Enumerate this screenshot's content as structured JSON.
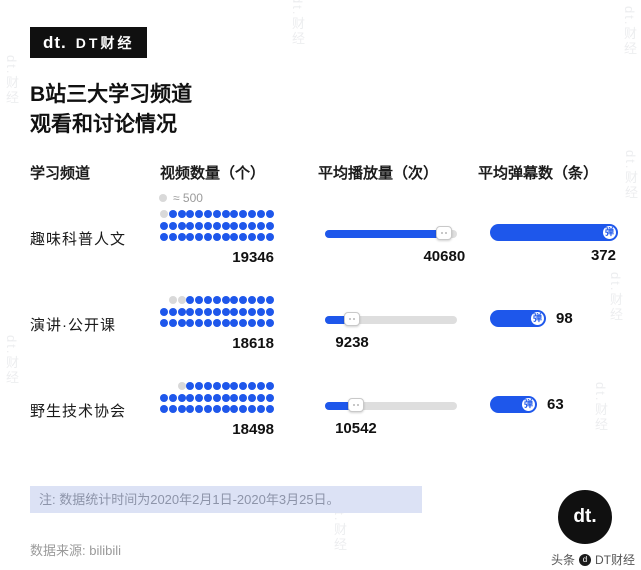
{
  "colors": {
    "accent": "#1E57EB",
    "gray_dot": "#D9D9D9",
    "track": "#DEDEDE",
    "note_bg": "#DCE2F5"
  },
  "brand": {
    "logo_text": "dt.",
    "logo_title": "DT财经"
  },
  "title": {
    "line1": "B站三大学习频道",
    "line2": "观看和讨论情况"
  },
  "table_headers": {
    "channel": "学习频道",
    "videos": "视频数量（个）",
    "plays": "平均播放量（次）",
    "danmaku": "平均弹幕数（条）"
  },
  "legend": {
    "label": "≈ 500"
  },
  "danmaku_icon": "弹",
  "chart_data": {
    "type": "table",
    "title": "B站三大学习频道观看和讨论情况",
    "dot_unit": 500,
    "plays_scale_max": 45000,
    "danmaku_scale_max": 380,
    "rows": [
      {
        "channel": "趣味科普人文",
        "videos": 19346,
        "avg_plays": 40680,
        "avg_danmaku": 372,
        "dots": {
          "offset": 0,
          "gray": 1,
          "blue": 38
        }
      },
      {
        "channel": "演讲·公开课",
        "videos": 18618,
        "avg_plays": 9238,
        "avg_danmaku": 98,
        "dots": {
          "offset": 1,
          "gray": 2,
          "blue": 36
        }
      },
      {
        "channel": "野生技术协会",
        "videos": 18498,
        "avg_plays": 10542,
        "avg_danmaku": 63,
        "dots": {
          "offset": 2,
          "gray": 1,
          "blue": 36
        }
      }
    ]
  },
  "note": "注: 数据统计时间为2020年2月1日-2020年3月25日。",
  "source": "数据来源: bilibili",
  "footer_badge": {
    "logo_text": "dt."
  },
  "watermark": {
    "text": "dt.财经",
    "credit_left": "头条",
    "credit_right": "DT财经"
  }
}
